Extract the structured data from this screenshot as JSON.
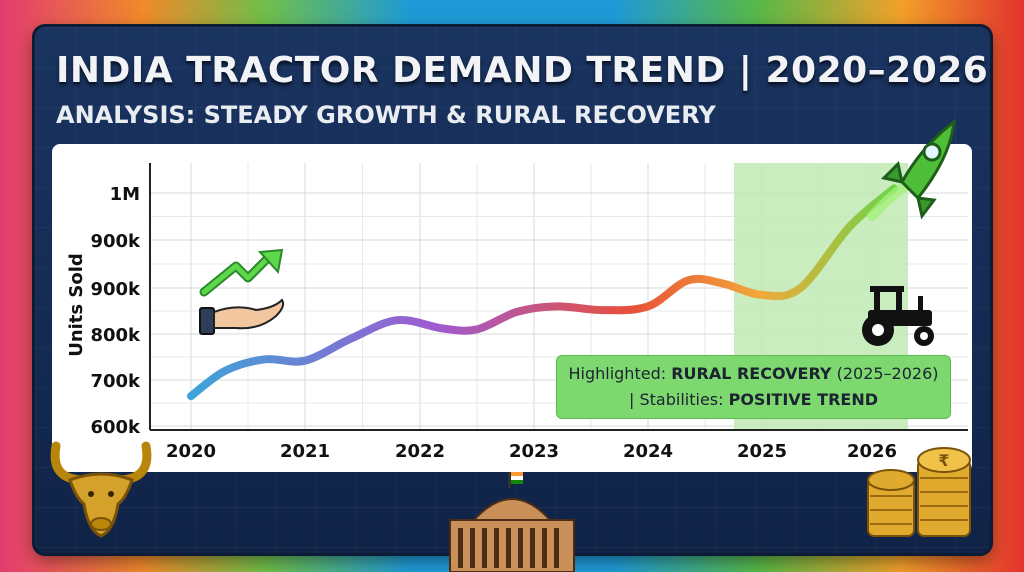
{
  "title": "INDIA TRACTOR DEMAND TREND | 2020–2026",
  "subtitle": "ANALYSIS: STEADY GROWTH & RURAL RECOVERY",
  "note": {
    "prefix": "Highlighted: ",
    "highlight": "RURAL RECOVERY",
    "range": " (2025–2026)",
    "line2_prefix": "| Stabilities: ",
    "line2_highlight": "POSITIVE TREND"
  },
  "colors": {
    "highlight_band": "#bfeab4",
    "note_bg": "#7ed870",
    "panel": "#152b52",
    "line_start": "#3aa6d8",
    "line_mid": "#a05ad0",
    "line_late": "#e8503a",
    "line_end": "#5fd84a"
  },
  "icons": [
    "growth-hand-icon",
    "tractor-icon",
    "rocket-icon",
    "bull-icon",
    "parliament-icon",
    "rupee-coins-icon"
  ],
  "chart_data": {
    "type": "line",
    "ylabel": "Units Sold",
    "xlabel": "",
    "x_ticks": [
      "2020",
      "2021",
      "2022",
      "2023",
      "2024",
      "2025",
      "2026"
    ],
    "y_ticks": [
      "600k",
      "700k",
      "800k",
      "900k",
      "900k",
      "1M"
    ],
    "highlight_range": [
      "2025",
      "2026"
    ],
    "grid": true,
    "series": [
      {
        "points": [
          {
            "x": 2020.0,
            "y": 665000
          },
          {
            "x": 2020.3,
            "y": 720000
          },
          {
            "x": 2020.65,
            "y": 745000
          },
          {
            "x": 2021.0,
            "y": 742000
          },
          {
            "x": 2021.4,
            "y": 790000
          },
          {
            "x": 2021.8,
            "y": 830000
          },
          {
            "x": 2022.2,
            "y": 812000
          },
          {
            "x": 2022.5,
            "y": 810000
          },
          {
            "x": 2022.85,
            "y": 848000
          },
          {
            "x": 2023.2,
            "y": 860000
          },
          {
            "x": 2023.6,
            "y": 852000
          },
          {
            "x": 2024.0,
            "y": 860000
          },
          {
            "x": 2024.35,
            "y": 908000
          },
          {
            "x": 2024.65,
            "y": 905000
          },
          {
            "x": 2025.0,
            "y": 885000
          },
          {
            "x": 2025.35,
            "y": 900000
          },
          {
            "x": 2025.8,
            "y": 965000
          },
          {
            "x": 2026.2,
            "y": 1010000
          }
        ]
      }
    ]
  }
}
